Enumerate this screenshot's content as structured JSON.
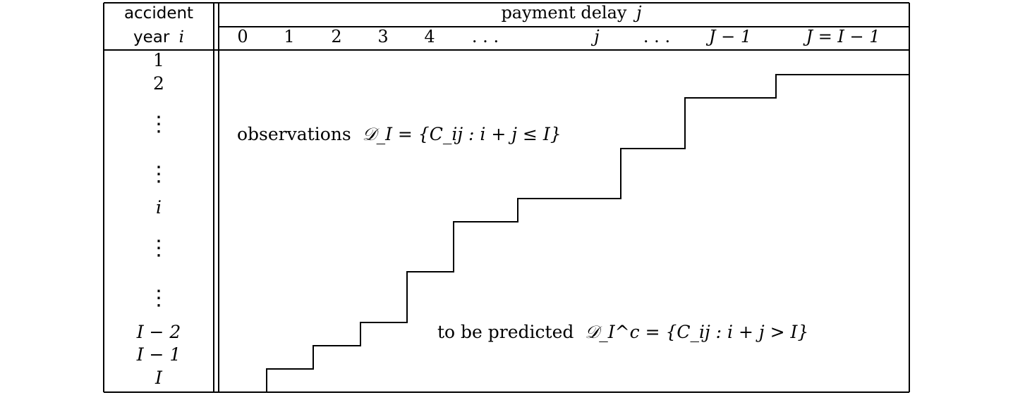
{
  "header": {
    "row_header_line1": "accident",
    "row_header_line2": "year",
    "row_header_var": "i",
    "col_header_prefix": "payment delay",
    "col_header_var": "j",
    "delay_labels": [
      {
        "text": "0",
        "italic": false
      },
      {
        "text": "1",
        "italic": false
      },
      {
        "text": "2",
        "italic": false
      },
      {
        "text": "3",
        "italic": false
      },
      {
        "text": "4",
        "italic": false
      },
      {
        "text": ". . .",
        "italic": false
      },
      {
        "text": "j",
        "italic": true
      },
      {
        "text": ". . .",
        "italic": false
      },
      {
        "text": "J − 1",
        "italic": true
      },
      {
        "text": "J = I − 1",
        "italic": true
      }
    ]
  },
  "rows": [
    {
      "text": "1",
      "italic": false
    },
    {
      "text": "2",
      "italic": false
    },
    {
      "text": "⋮",
      "italic": false
    },
    {
      "text": "⋮",
      "italic": false
    },
    {
      "text": "i",
      "italic": true
    },
    {
      "text": "⋮",
      "italic": false
    },
    {
      "text": "⋮",
      "italic": false
    },
    {
      "text": "I − 2",
      "italic": true
    },
    {
      "text": "I − 1",
      "italic": true
    },
    {
      "text": "I",
      "italic": true
    }
  ],
  "regions": {
    "observed_text": "observations",
    "observed_formula": "𝒟_I = {C_ij : i + j ≤ I}",
    "predicted_text": "to be predicted",
    "predicted_formula": "𝒟_I^c = {C_ij : i + j > I}"
  }
}
